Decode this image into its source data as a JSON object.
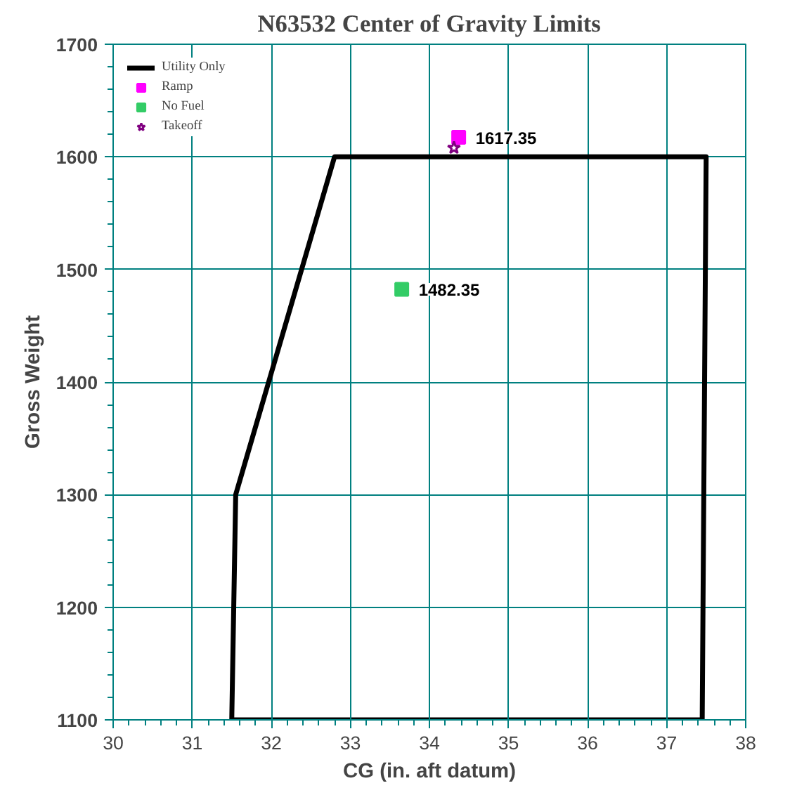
{
  "chart_data": {
    "type": "line",
    "title": "N63532 Center of Gravity Limits",
    "xlabel": "CG (in. aft datum)",
    "ylabel": "Gross Weight",
    "xlim": [
      30,
      38
    ],
    "xticks": [
      30,
      31,
      32,
      33,
      34,
      35,
      36,
      37,
      38
    ],
    "ylim": [
      1100,
      1700
    ],
    "yticks": [
      1100,
      1200,
      1300,
      1400,
      1500,
      1600,
      1700
    ],
    "grid": true,
    "legend": "top left",
    "series": [
      {
        "name": "Utility Only",
        "type": "line",
        "color": "#000000",
        "marker": "none",
        "x": [
          31.5,
          31.55,
          32.8,
          37.5,
          37.45
        ],
        "values": [
          1100,
          1300,
          1600,
          1600,
          1100
        ]
      },
      {
        "type": "line",
        "color": "#000000",
        "marker": "none",
        "x": [
          31.5,
          37.45
        ],
        "values": [
          1100,
          1100
        ]
      },
      {
        "name": "Ramp",
        "type": "scatter",
        "color": "#ff00ff",
        "marker": "square",
        "x": [
          34.37
        ],
        "values": [
          1617.35
        ],
        "value_labels": [
          "1617.35"
        ]
      },
      {
        "name": "No Fuel",
        "type": "scatter",
        "color": "#33cc66",
        "marker": "square",
        "x": [
          33.65
        ],
        "values": [
          1482.35
        ],
        "value_labels": [
          "1482.35"
        ]
      },
      {
        "name": "Takeoff",
        "type": "scatter",
        "color": "#800080",
        "marker": "star",
        "x": [
          34.31
        ],
        "values": [
          1608
        ]
      }
    ]
  }
}
